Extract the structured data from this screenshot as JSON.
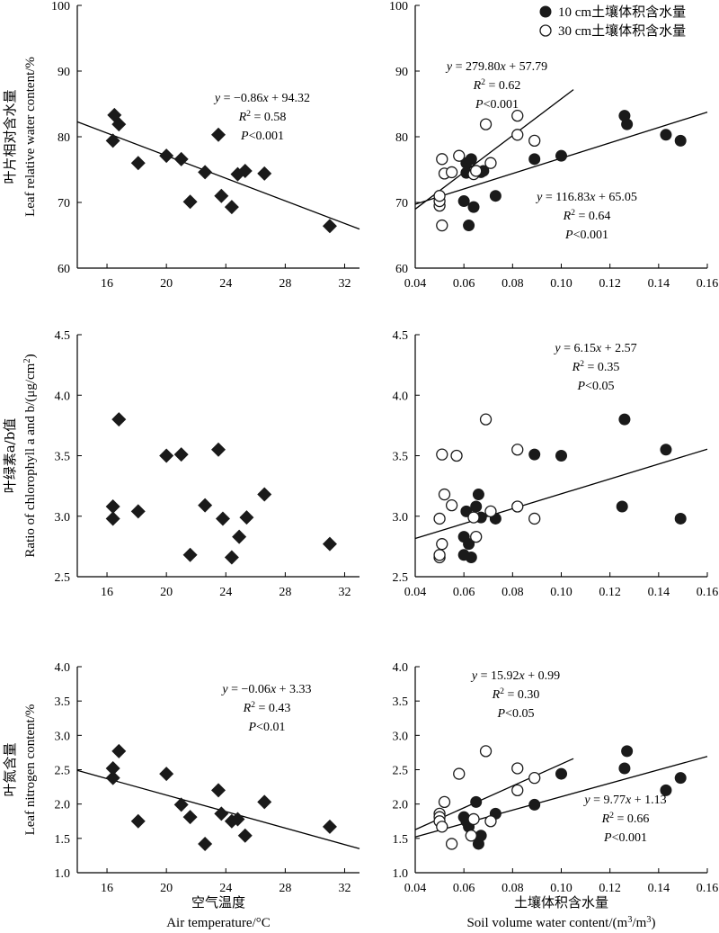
{
  "chart_data": [
    {
      "type": "scatter",
      "panel": "a",
      "xlim": [
        14,
        33
      ],
      "ylim": [
        60,
        100
      ],
      "xticks": [
        16,
        20,
        24,
        28,
        32
      ],
      "yticks": [
        60,
        70,
        80,
        90,
        100
      ],
      "ylabel_cn": "叶片相对含水量",
      "ylabel_en": "Leaf relative water content/%",
      "series": [
        {
          "marker": "diamond",
          "points": [
            [
              16.4,
              79.4
            ],
            [
              16.5,
              83.3
            ],
            [
              16.8,
              81.9
            ],
            [
              18.1,
              76.0
            ],
            [
              20.0,
              77.1
            ],
            [
              21.0,
              76.6
            ],
            [
              21.6,
              70.1
            ],
            [
              22.6,
              74.6
            ],
            [
              23.5,
              80.3
            ],
            [
              23.7,
              71.0
            ],
            [
              24.4,
              69.3
            ],
            [
              24.8,
              74.3
            ],
            [
              25.3,
              74.8
            ],
            [
              26.6,
              74.4
            ],
            [
              31.0,
              66.4
            ]
          ]
        }
      ],
      "fits": [
        {
          "x0": 14,
          "x1": 33,
          "slope": -0.86,
          "intercept": 94.32
        }
      ],
      "annotations": [
        {
          "lines": [
            "y = −0.86x + 94.32",
            "R2 = 0.58",
            "P<0.001"
          ]
        }
      ]
    },
    {
      "type": "scatter",
      "panel": "b",
      "xlim": [
        0.04,
        0.16
      ],
      "ylim": [
        60,
        100
      ],
      "xticks": [
        "0.04",
        "0.06",
        "0.08",
        "0.10",
        "0.12",
        "0.14",
        "0.16"
      ],
      "yticks": [
        60,
        70,
        80,
        90,
        100
      ],
      "legend": [
        "10 cm土壤体积含水量",
        "30 cm土壤体积含水量"
      ],
      "series": [
        {
          "name": "10 cm土壤体积含水量",
          "marker": "filled",
          "points": [
            [
              0.06,
              70.2
            ],
            [
              0.061,
              74.5
            ],
            [
              0.061,
              76.0
            ],
            [
              0.062,
              66.5
            ],
            [
              0.063,
              76.6
            ],
            [
              0.064,
              69.3
            ],
            [
              0.065,
              74.6
            ],
            [
              0.067,
              74.6
            ],
            [
              0.068,
              74.8
            ],
            [
              0.073,
              71.0
            ],
            [
              0.089,
              76.6
            ],
            [
              0.1,
              77.1
            ],
            [
              0.126,
              83.2
            ],
            [
              0.127,
              81.9
            ],
            [
              0.143,
              80.3
            ],
            [
              0.149,
              79.4
            ]
          ]
        },
        {
          "name": "30 cm土壤体积含水量",
          "marker": "open",
          "points": [
            [
              0.05,
              69.5
            ],
            [
              0.05,
              70.2
            ],
            [
              0.05,
              71.0
            ],
            [
              0.051,
              66.5
            ],
            [
              0.051,
              76.6
            ],
            [
              0.052,
              74.4
            ],
            [
              0.055,
              74.6
            ],
            [
              0.058,
              77.1
            ],
            [
              0.064,
              74.3
            ],
            [
              0.065,
              74.8
            ],
            [
              0.069,
              81.9
            ],
            [
              0.071,
              76.0
            ],
            [
              0.082,
              83.2
            ],
            [
              0.082,
              80.3
            ],
            [
              0.089,
              79.4
            ]
          ]
        }
      ],
      "fits": [
        {
          "x0": 0.04,
          "x1": 0.105,
          "slope": 279.8,
          "intercept": 57.79
        },
        {
          "x0": 0.04,
          "x1": 0.16,
          "slope": 116.83,
          "intercept": 65.05
        }
      ],
      "annotations": [
        {
          "lines": [
            "y = 279.80x + 57.79",
            "R2 = 0.62",
            "P<0.001"
          ]
        },
        {
          "lines": [
            "y = 116.83x + 65.05",
            "R2 = 0.64",
            "P<0.001"
          ]
        }
      ]
    },
    {
      "type": "scatter",
      "panel": "c",
      "xlim": [
        14,
        33
      ],
      "ylim": [
        2.5,
        4.5
      ],
      "xticks": [
        16,
        20,
        24,
        28,
        32
      ],
      "yticks": [
        "2.5",
        "3.0",
        "3.5",
        "4.0",
        "4.5"
      ],
      "ylabel_cn": "叶绿素a/b值",
      "ylabel_en": "Ratio of chlorophyll a and b/(μg/cm2)",
      "series": [
        {
          "marker": "diamond",
          "points": [
            [
              16.4,
              2.98
            ],
            [
              16.4,
              3.08
            ],
            [
              16.8,
              3.8
            ],
            [
              18.1,
              3.04
            ],
            [
              20.0,
              3.5
            ],
            [
              21.0,
              3.51
            ],
            [
              21.6,
              2.68
            ],
            [
              22.6,
              3.09
            ],
            [
              23.5,
              3.55
            ],
            [
              23.8,
              2.98
            ],
            [
              24.4,
              2.66
            ],
            [
              24.9,
              2.83
            ],
            [
              25.4,
              2.99
            ],
            [
              26.6,
              3.18
            ],
            [
              31.0,
              2.77
            ]
          ]
        }
      ],
      "fits": [],
      "annotations": []
    },
    {
      "type": "scatter",
      "panel": "d",
      "xlim": [
        0.04,
        0.16
      ],
      "ylim": [
        2.5,
        4.5
      ],
      "xticks": [
        "0.04",
        "0.06",
        "0.08",
        "0.10",
        "0.12",
        "0.14",
        "0.16"
      ],
      "yticks": [
        "2.5",
        "3.0",
        "3.5",
        "4.0",
        "4.5"
      ],
      "series": [
        {
          "name": "10 cm土壤体积含水量",
          "marker": "filled",
          "points": [
            [
              0.06,
              2.83
            ],
            [
              0.06,
              2.68
            ],
            [
              0.061,
              3.04
            ],
            [
              0.062,
              2.77
            ],
            [
              0.063,
              2.66
            ],
            [
              0.065,
              3.08
            ],
            [
              0.066,
              3.18
            ],
            [
              0.067,
              2.99
            ],
            [
              0.073,
              2.98
            ],
            [
              0.089,
              3.51
            ],
            [
              0.1,
              3.5
            ],
            [
              0.126,
              3.8
            ],
            [
              0.125,
              3.08
            ],
            [
              0.143,
              3.55
            ],
            [
              0.149,
              2.98
            ]
          ]
        },
        {
          "name": "30 cm土壤体积含水量",
          "marker": "open",
          "points": [
            [
              0.05,
              2.98
            ],
            [
              0.05,
              2.66
            ],
            [
              0.05,
              2.68
            ],
            [
              0.051,
              2.77
            ],
            [
              0.051,
              3.51
            ],
            [
              0.052,
              3.18
            ],
            [
              0.055,
              3.09
            ],
            [
              0.057,
              3.5
            ],
            [
              0.064,
              2.99
            ],
            [
              0.065,
              2.83
            ],
            [
              0.069,
              3.8
            ],
            [
              0.071,
              3.04
            ],
            [
              0.082,
              3.55
            ],
            [
              0.082,
              3.08
            ],
            [
              0.089,
              2.98
            ]
          ]
        }
      ],
      "fits": [
        {
          "x0": 0.04,
          "x1": 0.16,
          "slope": 6.15,
          "intercept": 2.57
        }
      ],
      "annotations": [
        {
          "lines": [
            "y = 6.15x + 2.57",
            "R2 = 0.35",
            "P<0.05"
          ]
        }
      ]
    },
    {
      "type": "scatter",
      "panel": "e",
      "xlim": [
        14,
        33
      ],
      "ylim": [
        1.0,
        4.0
      ],
      "xticks": [
        16,
        20,
        24,
        28,
        32
      ],
      "yticks": [
        "1.0",
        "1.5",
        "2.0",
        "2.5",
        "3.0",
        "3.5",
        "4.0"
      ],
      "ylabel_cn": "叶氮含量",
      "ylabel_en": "Leaf nitrogen content/%",
      "xlabel_cn": "空气温度",
      "xlabel_en": "Air temperature/°C",
      "series": [
        {
          "marker": "diamond",
          "points": [
            [
              16.4,
              2.38
            ],
            [
              16.4,
              2.52
            ],
            [
              16.8,
              2.77
            ],
            [
              18.1,
              1.75
            ],
            [
              20.0,
              2.44
            ],
            [
              21.0,
              1.99
            ],
            [
              21.6,
              1.81
            ],
            [
              22.6,
              1.42
            ],
            [
              23.5,
              2.2
            ],
            [
              23.7,
              1.86
            ],
            [
              24.4,
              1.75
            ],
            [
              24.8,
              1.78
            ],
            [
              25.3,
              1.54
            ],
            [
              26.6,
              2.03
            ],
            [
              31.0,
              1.67
            ]
          ]
        }
      ],
      "fits": [
        {
          "x0": 14,
          "x1": 33,
          "slope": -0.06,
          "intercept": 3.33
        }
      ],
      "annotations": [
        {
          "lines": [
            "y = −0.06x + 3.33",
            "R2 = 0.43",
            "P<0.01"
          ]
        }
      ]
    },
    {
      "type": "scatter",
      "panel": "f",
      "xlim": [
        0.04,
        0.16
      ],
      "ylim": [
        1.0,
        4.0
      ],
      "xticks": [
        "0.04",
        "0.06",
        "0.08",
        "0.10",
        "0.12",
        "0.14",
        "0.16"
      ],
      "yticks": [
        "1.0",
        "1.5",
        "2.0",
        "2.5",
        "3.0",
        "3.5",
        "4.0"
      ],
      "xlabel_cn": "土壤体积含水量",
      "xlabel_en": "Soil volume water content/(m3/m3)",
      "series": [
        {
          "name": "10 cm土壤体积含水量",
          "marker": "filled",
          "points": [
            [
              0.06,
              1.81
            ],
            [
              0.061,
              1.75
            ],
            [
              0.062,
              1.67
            ],
            [
              0.063,
              1.54
            ],
            [
              0.065,
              2.03
            ],
            [
              0.066,
              1.42
            ],
            [
              0.067,
              1.54
            ],
            [
              0.073,
              1.86
            ],
            [
              0.089,
              1.99
            ],
            [
              0.1,
              2.44
            ],
            [
              0.126,
              2.52
            ],
            [
              0.127,
              2.77
            ],
            [
              0.143,
              2.2
            ],
            [
              0.149,
              2.38
            ]
          ]
        },
        {
          "name": "30 cm土壤体积含水量",
          "marker": "open",
          "points": [
            [
              0.05,
              1.86
            ],
            [
              0.05,
              1.81
            ],
            [
              0.05,
              1.75
            ],
            [
              0.051,
              1.67
            ],
            [
              0.052,
              2.03
            ],
            [
              0.055,
              1.42
            ],
            [
              0.058,
              2.44
            ],
            [
              0.063,
              1.54
            ],
            [
              0.064,
              1.78
            ],
            [
              0.069,
              2.77
            ],
            [
              0.071,
              1.75
            ],
            [
              0.082,
              2.2
            ],
            [
              0.082,
              2.52
            ],
            [
              0.089,
              2.38
            ]
          ]
        }
      ],
      "fits": [
        {
          "x0": 0.04,
          "x1": 0.105,
          "slope": 15.92,
          "intercept": 0.99
        },
        {
          "x0": 0.04,
          "x1": 0.16,
          "slope": 9.77,
          "intercept": 1.13
        }
      ],
      "annotations": [
        {
          "lines": [
            "y = 15.92x + 0.99",
            "R2 = 0.30",
            "P<0.05"
          ]
        },
        {
          "lines": [
            "y = 9.77x + 1.13",
            "R2 = 0.66",
            "P<0.001"
          ]
        }
      ]
    }
  ]
}
